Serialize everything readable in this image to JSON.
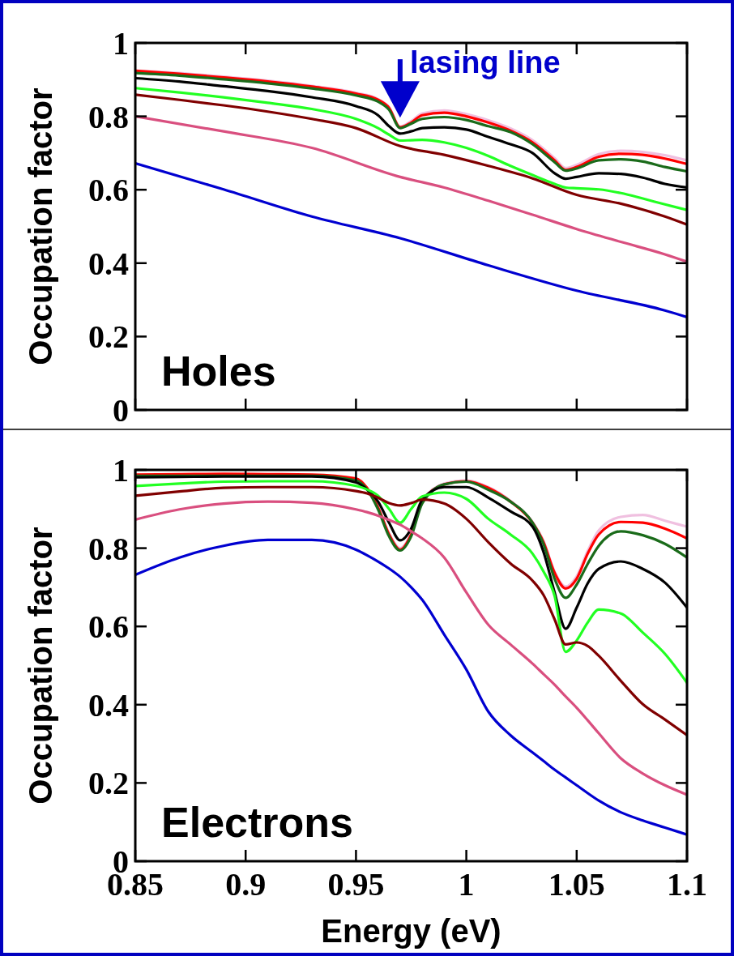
{
  "chart_data": [
    {
      "type": "line",
      "ylabel": "Occupation factor",
      "annotations": [
        "Holes",
        {
          "text": "lasing line",
          "x": 0.97,
          "y": 0.79
        }
      ],
      "xlim": [
        0.85,
        1.1
      ],
      "xticks": [
        0.85,
        0.9,
        0.95,
        1,
        1.05,
        1.1
      ],
      "ylim": [
        0,
        1
      ],
      "yticks": [
        0,
        0.2,
        0.4,
        0.6,
        0.8,
        1
      ],
      "tick_labels": "y",
      "grid": false,
      "x": [
        0.85,
        0.87,
        0.89,
        0.91,
        0.93,
        0.95,
        0.96,
        0.965,
        0.97,
        0.975,
        0.98,
        0.99,
        1.0,
        1.01,
        1.02,
        1.03,
        1.04,
        1.045,
        1.05,
        1.06,
        1.07,
        1.08,
        1.09,
        1.1
      ],
      "series": [
        {
          "color": "#f0c0e0",
          "values": [
            0.925,
            0.918,
            0.908,
            0.897,
            0.883,
            0.864,
            0.847,
            0.825,
            0.772,
            0.787,
            0.808,
            0.816,
            0.806,
            0.789,
            0.767,
            0.735,
            0.686,
            0.659,
            0.668,
            0.697,
            0.706,
            0.703,
            0.694,
            0.68
          ]
        },
        {
          "color": "#ff0000",
          "values": [
            0.924,
            0.916,
            0.906,
            0.895,
            0.881,
            0.862,
            0.845,
            0.823,
            0.77,
            0.783,
            0.803,
            0.81,
            0.8,
            0.783,
            0.761,
            0.729,
            0.68,
            0.654,
            0.662,
            0.69,
            0.698,
            0.695,
            0.685,
            0.67
          ]
        },
        {
          "color": "#1a6b1a",
          "values": [
            0.918,
            0.911,
            0.901,
            0.89,
            0.876,
            0.857,
            0.84,
            0.818,
            0.768,
            0.78,
            0.793,
            0.798,
            0.79,
            0.773,
            0.757,
            0.724,
            0.675,
            0.652,
            0.658,
            0.68,
            0.683,
            0.677,
            0.662,
            0.65
          ]
        },
        {
          "color": "#000000",
          "values": [
            0.904,
            0.895,
            0.882,
            0.869,
            0.852,
            0.828,
            0.803,
            0.773,
            0.753,
            0.759,
            0.768,
            0.77,
            0.764,
            0.744,
            0.724,
            0.7,
            0.645,
            0.63,
            0.635,
            0.645,
            0.643,
            0.633,
            0.616,
            0.606
          ]
        },
        {
          "color": "#22ff22",
          "values": [
            0.877,
            0.865,
            0.852,
            0.837,
            0.82,
            0.793,
            0.768,
            0.75,
            0.734,
            0.735,
            0.736,
            0.729,
            0.714,
            0.692,
            0.665,
            0.64,
            0.616,
            0.606,
            0.604,
            0.601,
            0.591,
            0.576,
            0.56,
            0.545
          ]
        },
        {
          "color": "#800000",
          "x": [
            0.85,
            0.87,
            0.89,
            0.91,
            0.93,
            0.95,
            0.97,
            0.99,
            1.01,
            1.03,
            1.05,
            1.07,
            1.09,
            1.1
          ],
          "values": [
            0.859,
            0.845,
            0.83,
            0.813,
            0.793,
            0.768,
            0.719,
            0.695,
            0.665,
            0.631,
            0.586,
            0.562,
            0.527,
            0.505
          ]
        },
        {
          "color": "#d94f7f",
          "x": [
            0.85,
            0.89,
            0.93,
            0.97,
            0.99,
            1.01,
            1.03,
            1.05,
            1.07,
            1.09,
            1.1
          ],
          "values": [
            0.8,
            0.759,
            0.714,
            0.635,
            0.606,
            0.57,
            0.532,
            0.493,
            0.458,
            0.424,
            0.404
          ]
        },
        {
          "color": "#0000d0",
          "x": [
            0.85,
            0.89,
            0.93,
            0.97,
            1.01,
            1.05,
            1.09,
            1.1
          ],
          "values": [
            0.672,
            0.601,
            0.527,
            0.468,
            0.394,
            0.325,
            0.271,
            0.253
          ]
        }
      ]
    },
    {
      "type": "line",
      "xlabel": "Energy (eV)",
      "ylabel": "Occupation factor",
      "annotations": [
        "Electrons"
      ],
      "xlim": [
        0.85,
        1.1
      ],
      "xticks": [
        0.85,
        0.9,
        0.95,
        1,
        1.05,
        1.1
      ],
      "ylim": [
        0,
        1
      ],
      "yticks": [
        0,
        0.2,
        0.4,
        0.6,
        0.8,
        1
      ],
      "grid": false,
      "x": [
        0.85,
        0.87,
        0.89,
        0.91,
        0.93,
        0.95,
        0.955,
        0.96,
        0.965,
        0.97,
        0.975,
        0.98,
        0.99,
        1.0,
        1.01,
        1.02,
        1.03,
        1.035,
        1.04,
        1.045,
        1.05,
        1.055,
        1.06,
        1.07,
        1.08,
        1.09,
        1.1
      ],
      "series": [
        {
          "color": "#f0c0e0",
          "values": [
            null,
            null,
            null,
            null,
            null,
            null,
            0.955,
            0.906,
            0.838,
            0.8,
            0.838,
            0.921,
            0.965,
            0.973,
            0.956,
            0.921,
            0.867,
            0.818,
            0.74,
            0.702,
            0.728,
            0.793,
            0.845,
            0.88,
            0.885,
            0.87,
            0.855
          ]
        },
        {
          "color": "#ff0000",
          "values": [
            0.988,
            0.989,
            0.99,
            0.989,
            0.988,
            0.978,
            0.954,
            0.904,
            0.835,
            0.796,
            0.835,
            0.919,
            0.963,
            0.971,
            0.954,
            0.919,
            0.865,
            0.815,
            0.737,
            0.697,
            0.722,
            0.786,
            0.835,
            0.867,
            0.865,
            0.85,
            0.825
          ]
        },
        {
          "color": "#1a6b1a",
          "values": [
            0.985,
            0.985,
            0.985,
            0.985,
            0.985,
            0.973,
            0.95,
            0.899,
            0.83,
            0.794,
            0.83,
            0.914,
            0.963,
            0.97,
            0.949,
            0.919,
            0.865,
            0.81,
            0.722,
            0.673,
            0.707,
            0.76,
            0.806,
            0.843,
            0.833,
            0.811,
            0.776
          ]
        },
        {
          "color": "#000000",
          "values": [
            0.981,
            0.982,
            0.983,
            0.983,
            0.983,
            0.968,
            0.95,
            0.919,
            0.865,
            0.82,
            0.85,
            0.924,
            0.956,
            0.956,
            0.929,
            0.894,
            0.855,
            0.79,
            0.687,
            0.594,
            0.648,
            0.71,
            0.747,
            0.766,
            0.747,
            0.712,
            0.648
          ]
        },
        {
          "color": "#22ff22",
          "values": [
            0.959,
            0.965,
            0.97,
            0.971,
            0.971,
            0.959,
            0.95,
            0.934,
            0.9,
            0.865,
            0.9,
            0.932,
            0.942,
            0.926,
            0.875,
            0.835,
            0.786,
            0.74,
            0.678,
            0.535,
            0.564,
            0.61,
            0.643,
            0.633,
            0.584,
            0.53,
            0.456
          ]
        },
        {
          "color": "#800000",
          "values": [
            0.934,
            0.945,
            0.954,
            0.956,
            0.956,
            0.946,
            0.94,
            0.929,
            0.915,
            0.909,
            0.915,
            0.924,
            0.914,
            0.875,
            0.815,
            0.761,
            0.717,
            0.68,
            0.618,
            0.554,
            0.559,
            0.55,
            0.525,
            0.461,
            0.401,
            0.362,
            0.322
          ]
        },
        {
          "color": "#d94f7f",
          "values": [
            0.873,
            0.899,
            0.914,
            0.919,
            0.916,
            0.899,
            0.892,
            0.883,
            0.872,
            0.86,
            0.843,
            0.825,
            0.776,
            0.687,
            0.604,
            0.554,
            0.505,
            0.478,
            0.451,
            0.421,
            0.392,
            0.36,
            0.327,
            0.263,
            0.224,
            0.194,
            0.17
          ]
        },
        {
          "color": "#0000d0",
          "values": [
            0.732,
            0.776,
            0.806,
            0.821,
            0.821,
            0.796,
            0.782,
            0.766,
            0.748,
            0.727,
            0.7,
            0.668,
            0.579,
            0.49,
            0.382,
            0.322,
            0.278,
            0.256,
            0.234,
            0.214,
            0.194,
            0.174,
            0.155,
            0.125,
            0.104,
            0.086,
            0.068
          ]
        }
      ]
    }
  ]
}
